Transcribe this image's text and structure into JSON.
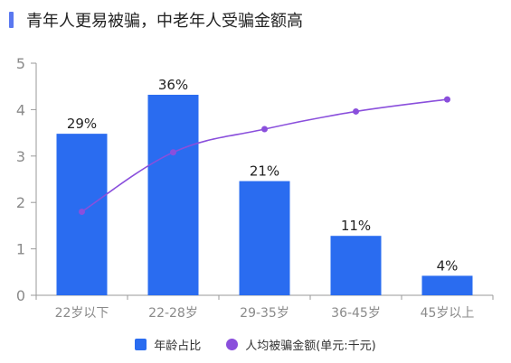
{
  "title": "青年人更易被骗，中老年人受骗金额高",
  "colors": {
    "accent": "#5a78f0",
    "bar": "#2a6cf0",
    "line": "#8a4fdc",
    "axis": "#9a9a9a",
    "grid": "#e6e6e6"
  },
  "legend": [
    {
      "label": "年龄占比",
      "shape": "square"
    },
    {
      "label": "人均被骗金额(单元:千元)",
      "shape": "circle"
    }
  ],
  "chart_data": {
    "type": "bar",
    "categories": [
      "22岁以下",
      "22-28岁",
      "29-35岁",
      "36-45岁",
      "45岁以上"
    ],
    "y_ticks": [
      "0",
      "1",
      "2",
      "3",
      "4",
      "5"
    ],
    "ylim": [
      0,
      5
    ],
    "grid": false,
    "legend_position": "bottom",
    "series": [
      {
        "name": "年龄占比",
        "type": "bar",
        "values": [
          3.48,
          4.32,
          2.46,
          1.28,
          0.42
        ],
        "labels": [
          "29%",
          "36%",
          "21%",
          "11%",
          "4%"
        ]
      },
      {
        "name": "人均被骗金额(单元:千元)",
        "type": "line",
        "values": [
          1.8,
          3.08,
          3.58,
          3.96,
          4.22
        ]
      }
    ]
  }
}
